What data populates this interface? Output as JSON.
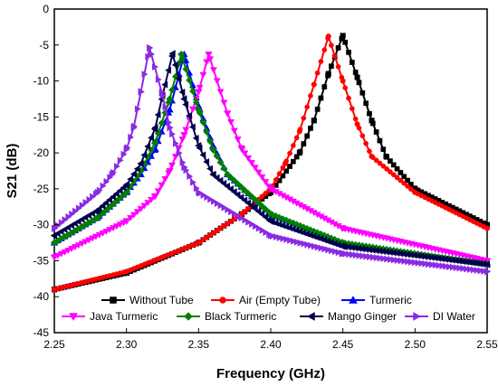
{
  "chart_data": {
    "type": "line",
    "xlabel": "Frequency (GHz)",
    "ylabel": "S21 (dB)",
    "xlim": [
      2.25,
      2.55
    ],
    "ylim": [
      -45,
      0
    ],
    "xticks": [
      2.25,
      2.3,
      2.35,
      2.4,
      2.45,
      2.5,
      2.55
    ],
    "xtick_labels": [
      "2.25",
      "2.30",
      "2.35",
      "2.40",
      "2.45",
      "2.50",
      "2.55"
    ],
    "yticks": [
      0,
      -5,
      -10,
      -15,
      -20,
      -25,
      -30,
      -35,
      -40,
      -45
    ],
    "ytick_labels": [
      "0",
      "-5",
      "-10",
      "-15",
      "-20",
      "-25",
      "-30",
      "-35",
      "-40",
      "-45"
    ],
    "grid": false,
    "legend_position": "bottom",
    "series": [
      {
        "name": "Without Tube",
        "color": "#000000",
        "marker": "square",
        "x": [
          2.25,
          2.3,
          2.35,
          2.38,
          2.4,
          2.42,
          2.43,
          2.44,
          2.45,
          2.46,
          2.47,
          2.48,
          2.5,
          2.55
        ],
        "y": [
          -39.0,
          -36.7,
          -32.5,
          -28.5,
          -25.5,
          -20.0,
          -15.5,
          -9.0,
          -3.7,
          -9.5,
          -15.5,
          -20.5,
          -25.0,
          -30.0
        ]
      },
      {
        "name": "Air (Empty Tube)",
        "color": "#ff0000",
        "marker": "circle",
        "x": [
          2.25,
          2.3,
          2.35,
          2.38,
          2.4,
          2.41,
          2.42,
          2.43,
          2.44,
          2.45,
          2.46,
          2.47,
          2.5,
          2.55
        ],
        "y": [
          -39.0,
          -36.5,
          -32.5,
          -28.5,
          -25.0,
          -21.5,
          -17.0,
          -10.5,
          -3.8,
          -10.0,
          -16.0,
          -20.5,
          -25.5,
          -30.5
        ]
      },
      {
        "name": "Turmeric",
        "color": "#0000ff",
        "marker": "triangle-up",
        "x": [
          2.25,
          2.28,
          2.3,
          2.31,
          2.32,
          2.33,
          2.34,
          2.35,
          2.36,
          2.37,
          2.4,
          2.45,
          2.55
        ],
        "y": [
          -32.5,
          -29.0,
          -25.5,
          -23.0,
          -19.5,
          -14.0,
          -6.3,
          -13.5,
          -19.0,
          -23.0,
          -28.5,
          -32.5,
          -35.5
        ]
      },
      {
        "name": "Java Turmeric",
        "color": "#ff00ff",
        "marker": "triangle-down",
        "x": [
          2.25,
          2.3,
          2.32,
          2.33,
          2.34,
          2.35,
          2.357,
          2.37,
          2.38,
          2.4,
          2.45,
          2.55
        ],
        "y": [
          -34.5,
          -29.5,
          -26.0,
          -22.5,
          -17.5,
          -11.5,
          -6.3,
          -14.5,
          -19.5,
          -25.0,
          -30.5,
          -35.0
        ]
      },
      {
        "name": "Black Turmeric",
        "color": "#008000",
        "marker": "diamond",
        "x": [
          2.25,
          2.28,
          2.3,
          2.31,
          2.32,
          2.33,
          2.338,
          2.35,
          2.36,
          2.37,
          2.4,
          2.45,
          2.55
        ],
        "y": [
          -32.5,
          -29.0,
          -25.5,
          -22.5,
          -18.5,
          -12.5,
          -6.3,
          -14.0,
          -19.5,
          -23.0,
          -28.5,
          -32.5,
          -35.5
        ]
      },
      {
        "name": "Mango Ginger",
        "color": "#00004d",
        "marker": "triangle-left",
        "x": [
          2.25,
          2.28,
          2.3,
          2.31,
          2.32,
          2.325,
          2.332,
          2.34,
          2.35,
          2.36,
          2.4,
          2.45,
          2.55
        ],
        "y": [
          -31.5,
          -28.0,
          -24.5,
          -21.5,
          -16.5,
          -12.0,
          -6.2,
          -12.5,
          -19.0,
          -23.0,
          -29.5,
          -33.0,
          -35.5
        ]
      },
      {
        "name": "DI Water",
        "color": "#8a2be2",
        "marker": "triangle-right",
        "x": [
          2.25,
          2.28,
          2.29,
          2.3,
          2.305,
          2.31,
          2.316,
          2.325,
          2.33,
          2.34,
          2.35,
          2.4,
          2.45,
          2.55
        ],
        "y": [
          -30.5,
          -25.5,
          -23.0,
          -19.5,
          -16.5,
          -11.5,
          -5.4,
          -12.0,
          -16.5,
          -22.0,
          -25.5,
          -31.5,
          -34.0,
          -36.5
        ]
      }
    ]
  }
}
